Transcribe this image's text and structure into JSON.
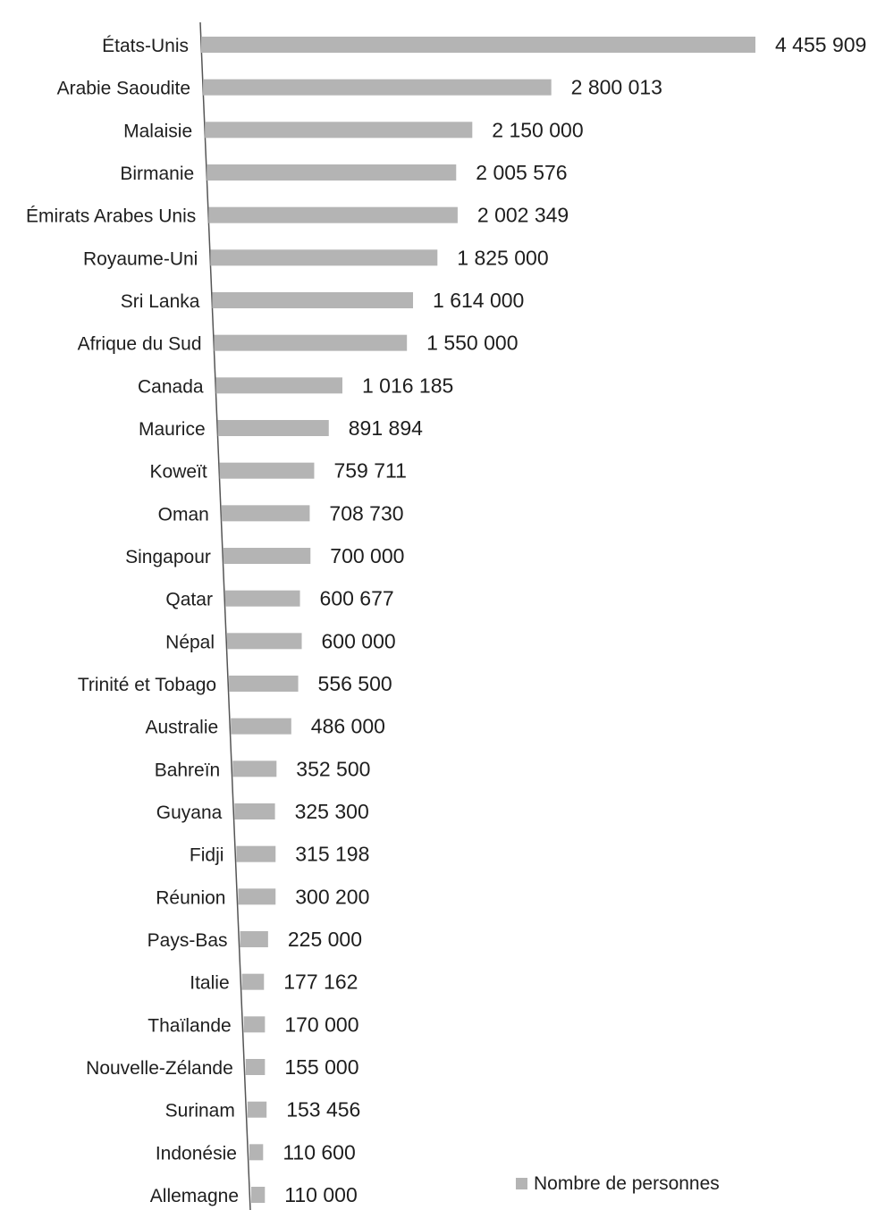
{
  "chart_data": {
    "type": "bar",
    "orientation": "horizontal",
    "categories": [
      "États-Unis",
      "Arabie Saoudite",
      "Malaisie",
      "Birmanie",
      "Émirats Arabes Unis",
      "Royaume-Uni",
      "Sri Lanka",
      "Afrique du Sud",
      "Canada",
      "Maurice",
      "Koweït",
      "Oman",
      "Singapour",
      "Qatar",
      "Népal",
      "Trinité et Tobago",
      "Australie",
      "Bahreïn",
      "Guyana",
      "Fidji",
      "Réunion",
      "Pays-Bas",
      "Italie",
      "Thaïlande",
      "Nouvelle-Zélande",
      "Surinam",
      "Indonésie",
      "Allemagne"
    ],
    "series": [
      {
        "name": "Nombre de personnes",
        "color": "#b4b4b4",
        "values": [
          4455909,
          2800013,
          2150000,
          2005576,
          2002349,
          1825000,
          1614000,
          1550000,
          1016185,
          891894,
          759711,
          708730,
          700000,
          600677,
          600000,
          556500,
          486000,
          352500,
          325300,
          315198,
          300200,
          225000,
          177162,
          170000,
          155000,
          153456,
          110600,
          110000
        ]
      }
    ],
    "value_labels": [
      "4 455 909",
      "2 800 013",
      "2 150 000",
      "2 005 576",
      "2 002 349",
      "1 825 000",
      "1 614 000",
      "1 550 000",
      "1 016 185",
      "891 894",
      "759 711",
      "708 730",
      "700 000",
      "600 677",
      "600 000",
      "556 500",
      "486 000",
      "352 500",
      "325 300",
      "315 198",
      "300 200",
      "225 000",
      "177 162",
      "170 000",
      "155 000",
      "153 456",
      "110 600",
      "110 000"
    ],
    "xlim": [
      0,
      4455909
    ],
    "grid": false,
    "legend_position": "bottom-right",
    "title": "",
    "xlabel": "",
    "ylabel": ""
  }
}
